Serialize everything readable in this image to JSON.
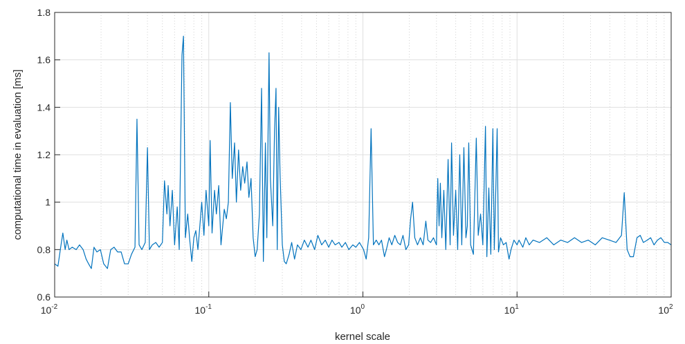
{
  "chart_data": {
    "type": "line",
    "xlabel": "kernel scale",
    "ylabel": "computational time in evaluation [ms]",
    "xscale": "log",
    "grid": true,
    "minor_grid": true,
    "xlim": [
      0.01,
      100
    ],
    "ylim": [
      0.6,
      1.8
    ],
    "xticks": [
      {
        "value": 0.01,
        "label": "10^-2"
      },
      {
        "value": 0.1,
        "label": "10^-1"
      },
      {
        "value": 1,
        "label": "10^0"
      },
      {
        "value": 10,
        "label": "10^1"
      },
      {
        "value": 100,
        "label": "10^2"
      }
    ],
    "yticks": [
      0.6,
      0.8,
      1,
      1.2,
      1.4,
      1.6,
      1.8
    ],
    "series": [
      {
        "color": "#0072bd",
        "x": [
          0.01,
          0.0105,
          0.011,
          0.0113,
          0.0117,
          0.012,
          0.0124,
          0.013,
          0.0138,
          0.0145,
          0.0153,
          0.016,
          0.0166,
          0.0173,
          0.018,
          0.0188,
          0.0198,
          0.0208,
          0.022,
          0.0231,
          0.0243,
          0.0256,
          0.027,
          0.0284,
          0.03,
          0.0315,
          0.0332,
          0.0342,
          0.0353,
          0.0368,
          0.0387,
          0.04,
          0.0412,
          0.043,
          0.0453,
          0.0476,
          0.05,
          0.0516,
          0.0535,
          0.0545,
          0.056,
          0.058,
          0.06,
          0.0624,
          0.0643,
          0.067,
          0.0685,
          0.0705,
          0.073,
          0.075,
          0.0776,
          0.08,
          0.0824,
          0.085,
          0.0875,
          0.09,
          0.093,
          0.096,
          0.1,
          0.102,
          0.105,
          0.109,
          0.112,
          0.116,
          0.12,
          0.126,
          0.13,
          0.134,
          0.138,
          0.142,
          0.147,
          0.151,
          0.156,
          0.161,
          0.166,
          0.171,
          0.177,
          0.182,
          0.188,
          0.194,
          0.2,
          0.206,
          0.213,
          0.22,
          0.226,
          0.233,
          0.238,
          0.246,
          0.251,
          0.26,
          0.267,
          0.273,
          0.278,
          0.284,
          0.29,
          0.3,
          0.309,
          0.318,
          0.332,
          0.345,
          0.36,
          0.376,
          0.396,
          0.417,
          0.44,
          0.46,
          0.486,
          0.51,
          0.54,
          0.57,
          0.6,
          0.63,
          0.66,
          0.7,
          0.73,
          0.77,
          0.81,
          0.86,
          0.9,
          0.95,
          1.01,
          1.05,
          1.09,
          1.13,
          1.17,
          1.22,
          1.27,
          1.32,
          1.38,
          1.42,
          1.48,
          1.54,
          1.61,
          1.68,
          1.75,
          1.82,
          1.9,
          1.98,
          2.04,
          2.1,
          2.17,
          2.26,
          2.36,
          2.46,
          2.56,
          2.64,
          2.75,
          2.87,
          3,
          3.06,
          3.12,
          3.18,
          3.25,
          3.35,
          3.45,
          3.57,
          3.68,
          3.76,
          3.87,
          4,
          4.12,
          4.25,
          4.38,
          4.52,
          4.66,
          4.76,
          4.86,
          5,
          5.21,
          5.44,
          5.6,
          5.8,
          6,
          6.24,
          6.37,
          6.56,
          6.76,
          6.97,
          7.12,
          7.28,
          7.43,
          7.58,
          7.82,
          8.16,
          8.5,
          8.87,
          9.14,
          9.55,
          10,
          10.3,
          10.9,
          11.4,
          12,
          12.7,
          14,
          15.6,
          17.3,
          19.2,
          21.3,
          23.6,
          26.2,
          29,
          32.2,
          35.7,
          39.6,
          43.9,
          47.6,
          49.6,
          51.8,
          54.1,
          56.9,
          60,
          63,
          66,
          70,
          73.6,
          77.4,
          81.5,
          85.8,
          90.4,
          95,
          100
        ],
        "values": [
          0.74,
          0.73,
          0.82,
          0.87,
          0.8,
          0.84,
          0.8,
          0.81,
          0.8,
          0.82,
          0.8,
          0.76,
          0.74,
          0.72,
          0.81,
          0.79,
          0.8,
          0.74,
          0.72,
          0.8,
          0.81,
          0.79,
          0.79,
          0.74,
          0.74,
          0.78,
          0.81,
          1.35,
          0.82,
          0.8,
          0.83,
          1.23,
          0.8,
          0.82,
          0.83,
          0.81,
          0.83,
          1.09,
          0.95,
          1.07,
          0.9,
          1.05,
          0.82,
          0.98,
          0.8,
          1.62,
          1.7,
          0.85,
          0.95,
          0.85,
          0.75,
          0.85,
          0.88,
          0.8,
          0.9,
          1.0,
          0.86,
          1.05,
          0.9,
          1.26,
          0.87,
          1.05,
          0.95,
          1.07,
          0.82,
          0.97,
          0.93,
          1.0,
          1.42,
          1.1,
          1.25,
          1.0,
          1.22,
          1.05,
          1.15,
          1.08,
          1.17,
          1.02,
          1.1,
          0.85,
          0.77,
          0.8,
          0.95,
          1.48,
          0.75,
          1.25,
          0.85,
          1.63,
          1.1,
          0.9,
          1.3,
          1.48,
          0.8,
          1.4,
          1.12,
          0.82,
          0.75,
          0.74,
          0.78,
          0.83,
          0.76,
          0.82,
          0.8,
          0.84,
          0.81,
          0.84,
          0.8,
          0.86,
          0.82,
          0.84,
          0.81,
          0.84,
          0.82,
          0.83,
          0.81,
          0.83,
          0.8,
          0.82,
          0.81,
          0.83,
          0.8,
          0.76,
          0.85,
          1.31,
          0.82,
          0.84,
          0.82,
          0.84,
          0.77,
          0.8,
          0.85,
          0.82,
          0.86,
          0.83,
          0.82,
          0.86,
          0.8,
          0.82,
          0.93,
          1.0,
          0.85,
          0.82,
          0.85,
          0.82,
          0.92,
          0.84,
          0.83,
          0.85,
          0.82,
          1.1,
          0.9,
          1.08,
          0.85,
          1.05,
          0.8,
          1.18,
          0.82,
          1.25,
          0.86,
          1.05,
          0.8,
          1.2,
          0.82,
          1.23,
          0.85,
          0.9,
          1.25,
          0.82,
          0.78,
          1.27,
          0.86,
          0.95,
          0.82,
          1.32,
          0.77,
          1.06,
          0.78,
          1.31,
          0.8,
          1.05,
          1.31,
          0.79,
          0.85,
          0.82,
          0.83,
          0.76,
          0.8,
          0.84,
          0.82,
          0.84,
          0.81,
          0.85,
          0.82,
          0.84,
          0.83,
          0.85,
          0.82,
          0.84,
          0.83,
          0.85,
          0.83,
          0.84,
          0.82,
          0.85,
          0.84,
          0.83,
          0.86,
          1.04,
          0.8,
          0.77,
          0.77,
          0.85,
          0.86,
          0.83,
          0.84,
          0.85,
          0.82,
          0.84,
          0.85,
          0.83,
          0.83,
          0.82
        ]
      }
    ]
  }
}
